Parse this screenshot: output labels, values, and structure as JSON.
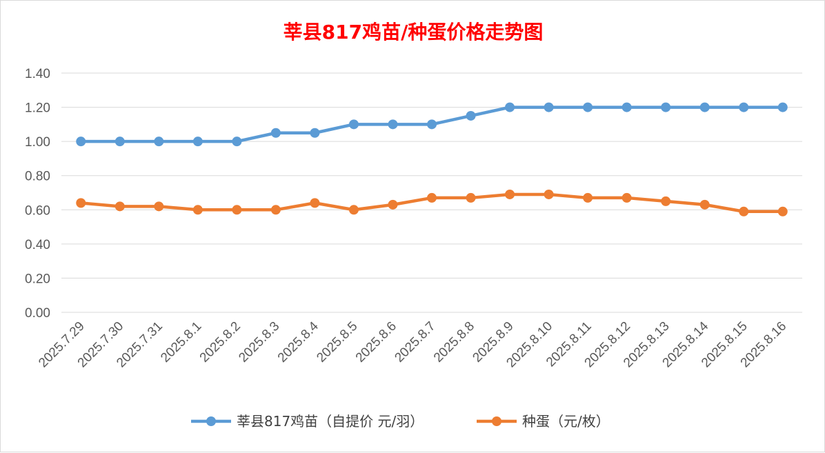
{
  "chart_data": {
    "type": "line",
    "title": "莘县817鸡苗/种蛋价格走势图",
    "xlabel": "",
    "ylabel": "",
    "ylim": [
      0,
      1.4
    ],
    "yticks": [
      "0.00",
      "0.20",
      "0.40",
      "0.60",
      "0.80",
      "1.00",
      "1.20",
      "1.40"
    ],
    "grid": true,
    "legend_position": "bottom",
    "categories": [
      "2025.7.29",
      "2025.7.30",
      "2025.7.31",
      "2025.8.1",
      "2025.8.2",
      "2025.8.3",
      "2025.8.4",
      "2025.8.5",
      "2025.8.6",
      "2025.8.7",
      "2025.8.8",
      "2025.8.9",
      "2025.8.10",
      "2025.8.11",
      "2025.8.12",
      "2025.8.13",
      "2025.8.14",
      "2025.8.15",
      "2025.8.16"
    ],
    "series": [
      {
        "name": "莘县817鸡苗（自提价 元/羽）",
        "color": "#5b9bd5",
        "values": [
          1.0,
          1.0,
          1.0,
          1.0,
          1.0,
          1.05,
          1.05,
          1.1,
          1.1,
          1.1,
          1.15,
          1.2,
          1.2,
          1.2,
          1.2,
          1.2,
          1.2,
          1.2,
          1.2
        ]
      },
      {
        "name": "种蛋（元/枚）",
        "color": "#ed7d31",
        "values": [
          0.64,
          0.62,
          0.62,
          0.6,
          0.6,
          0.6,
          0.64,
          0.6,
          0.63,
          0.67,
          0.67,
          0.69,
          0.69,
          0.67,
          0.67,
          0.65,
          0.63,
          0.59,
          0.59
        ]
      }
    ]
  }
}
